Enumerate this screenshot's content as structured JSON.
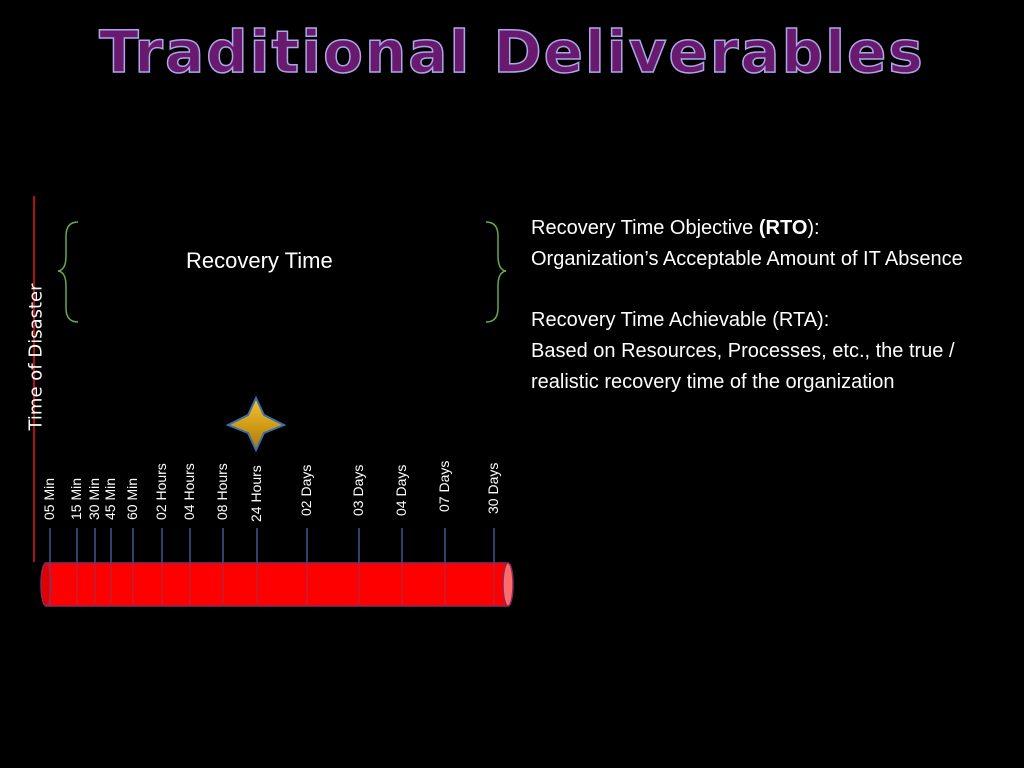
{
  "title": "Traditional Deliverables",
  "time_of_disaster_label": "Time of Disaster",
  "recovery_time_label": "Recovery Time",
  "timeline": {
    "ticks": [
      "05 Min",
      "15 Min",
      "30 Min",
      "45 Min",
      "60 Min",
      "02 Hours",
      "04 Hours",
      "08 Hours",
      "24 Hours",
      "02 Days",
      "03 Days",
      "04 Days",
      "07 Days",
      "30 Days"
    ],
    "star_marker_at": "24 Hours",
    "bar_color": "#ff0000",
    "star_color": "#d49a00"
  },
  "rto": {
    "label_prefix": "Recovery Time Objective ",
    "abbr": "(RTO",
    "label_suffix": "):",
    "description": "Organization’s Acceptable Amount of IT Absence"
  },
  "rta": {
    "label": "Recovery Time Achievable (RTA):",
    "description": "Based on Resources, Processes, etc., the true / realistic recovery time of the organization"
  }
}
